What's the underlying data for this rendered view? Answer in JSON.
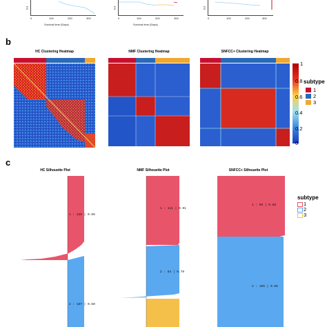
{
  "panel_a": {
    "xlabel_left": "Survival time (Days)",
    "xlabel_mid": "Survival time (Days)",
    "ticks_left": [
      "0",
      "100",
      "200",
      "300"
    ],
    "ticks_mid": [
      "0",
      "100",
      "200",
      "300"
    ],
    "ticks_right": [
      "0",
      "100",
      "200",
      "300"
    ],
    "ylab_left": "0.0",
    "ylab_mid": "0.0",
    "ylab_right": "0.0"
  },
  "panel_b": {
    "letter": "b",
    "titles": [
      "HC Clustering Heatmap",
      "NMF Clustering Heatmap",
      "SNFCC+ Clustering Heatmap"
    ],
    "colorbar_ticks": [
      "1",
      "0.8",
      "0.6",
      "0.4",
      "0.2",
      "0"
    ],
    "legend_title": "subtype",
    "legend_items": [
      "1",
      "2",
      "3"
    ]
  },
  "panel_c": {
    "letter": "c",
    "titles": [
      "HC Silhouette Plot",
      "NMF Silhouette Plot",
      "SNFCC+ Silhouette Plot"
    ],
    "hc_labels": [
      "1 : 139 | 0.66",
      "2 : 187 | 0.60"
    ],
    "nmf_labels": [
      "1 : 111 | 0.91",
      "2 : 84 | 0.79"
    ],
    "snf_labels": [
      "1 : 95 | 0.88",
      "2 : 165 | 0.86"
    ],
    "legend_title": "subtype",
    "legend_items": [
      "1",
      "2",
      "3"
    ]
  },
  "colors": {
    "subtype1": "#c8102e",
    "subtype2": "#2a6ab8",
    "subtype3": "#f0a830",
    "sil1": "#e8546a",
    "sil2": "#5aa8f0",
    "sil3": "#f5c04a"
  }
}
